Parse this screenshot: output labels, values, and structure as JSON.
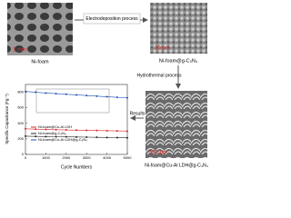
{
  "diagram": {
    "step1_label": "Ni-foam",
    "step1_scale": "1 mm",
    "arrow1_label": "Electrodeposition process",
    "step2_label": "Ni-foam@g-C₃N₄",
    "step2_scale": "10 μm",
    "arrow2_label": "Hydrothermal process",
    "step3_label": "Ni-foam@Cu-Al LDH@g-C₃N₄",
    "step3_scale": "500 nm",
    "arrow3_label": "Results"
  },
  "chart_data": {
    "type": "line",
    "x_label": "Cycle Numbers",
    "y_label": "Specific Capacitance (Fg⁻¹)",
    "x": [
      0,
      500,
      1000,
      1500,
      2000,
      2500,
      3000,
      3500,
      4000,
      4500,
      5000
    ],
    "series": [
      {
        "name": "Ni-foam@Cu-Al LDH",
        "color": "#d62728",
        "values": [
          330,
          325,
          322,
          318,
          315,
          312,
          310,
          308,
          305,
          303,
          300
        ]
      },
      {
        "name": "Ni-foam@g-C₃N₄",
        "color": "#222222",
        "values": [
          235,
          232,
          230,
          228,
          226,
          224,
          222,
          220,
          218,
          216,
          214
        ]
      },
      {
        "name": "Ni-foam@Cu-Al LDH@g-C₃N₄",
        "color": "#1f4fb4",
        "values": [
          810,
          800,
          790,
          782,
          774,
          766,
          758,
          750,
          742,
          735,
          728
        ]
      }
    ],
    "xlim": [
      0,
      5000
    ],
    "xticks": [
      0,
      1000,
      2000,
      3000,
      4000,
      5000
    ],
    "ylim": [
      0,
      900
    ],
    "yticks": [
      0,
      200,
      400,
      600,
      800
    ]
  }
}
